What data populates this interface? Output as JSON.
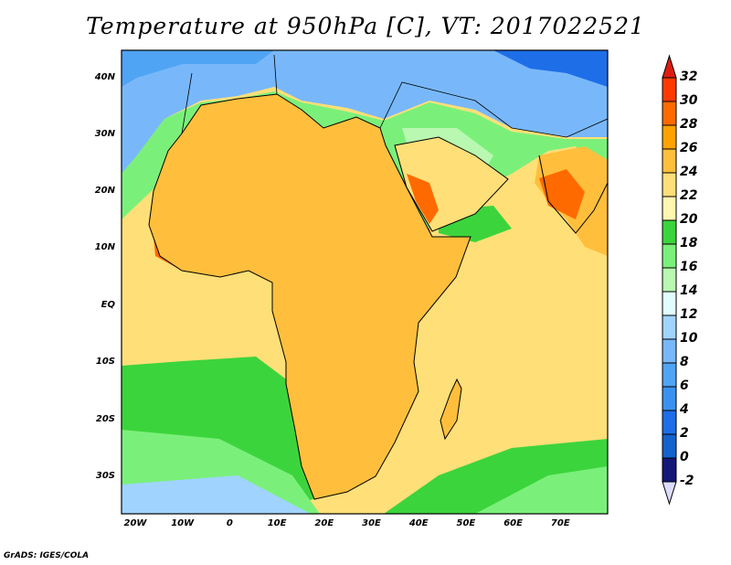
{
  "title": "Temperature at 950hPa [C], VT: 2017022521",
  "lat_labels": [
    "40N",
    "30N",
    "20N",
    "10N",
    "EQ",
    "10S",
    "20S",
    "30S"
  ],
  "lon_labels": [
    "20W",
    "10W",
    "0",
    "10E",
    "20E",
    "30E",
    "40E",
    "50E",
    "60E",
    "70E"
  ],
  "colorbar": {
    "labels": [
      "32",
      "30",
      "28",
      "26",
      "24",
      "22",
      "20",
      "18",
      "16",
      "14",
      "12",
      "10",
      "8",
      "6",
      "4",
      "2",
      "0",
      "-2"
    ],
    "colors": [
      "#dd1c10",
      "#ff3a00",
      "#ff6a00",
      "#ffa200",
      "#ffbf3c",
      "#ffdf78",
      "#fff6b0",
      "#3cd43c",
      "#7af07a",
      "#b8f8b0",
      "#e2fdff",
      "#a0d4ff",
      "#78b8fa",
      "#50a4f4",
      "#3a92f0",
      "#1e6ee8",
      "#1462cc",
      "#141878",
      "#dcdcff"
    ]
  },
  "credit": "GrADS: IGES/COLA"
}
